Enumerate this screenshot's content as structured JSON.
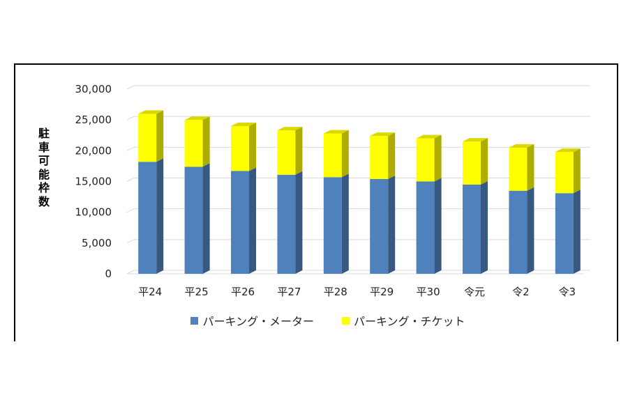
{
  "chart_data": {
    "type": "bar",
    "stacked": true,
    "categories": [
      "平24",
      "平25",
      "平26",
      "平27",
      "平28",
      "平29",
      "平30",
      "令元",
      "令2",
      "令3"
    ],
    "series": [
      {
        "name": "パーキング・メーター",
        "color": "#4f81bd",
        "values": [
          18200,
          17400,
          16700,
          16100,
          15700,
          15400,
          15000,
          14500,
          13500,
          13100
        ]
      },
      {
        "name": "パーキング・チケット",
        "color": "#ffff00",
        "values": [
          7800,
          7600,
          7300,
          7200,
          7100,
          7000,
          7000,
          7000,
          7000,
          6700
        ]
      }
    ],
    "ylabel": "駐車可能枠数",
    "ylim": [
      0,
      30000
    ],
    "yticks": [
      "0",
      "5,000",
      "10,000",
      "15,000",
      "20,000",
      "25,000",
      "30,000"
    ],
    "grid": true,
    "legend_position": "bottom"
  }
}
